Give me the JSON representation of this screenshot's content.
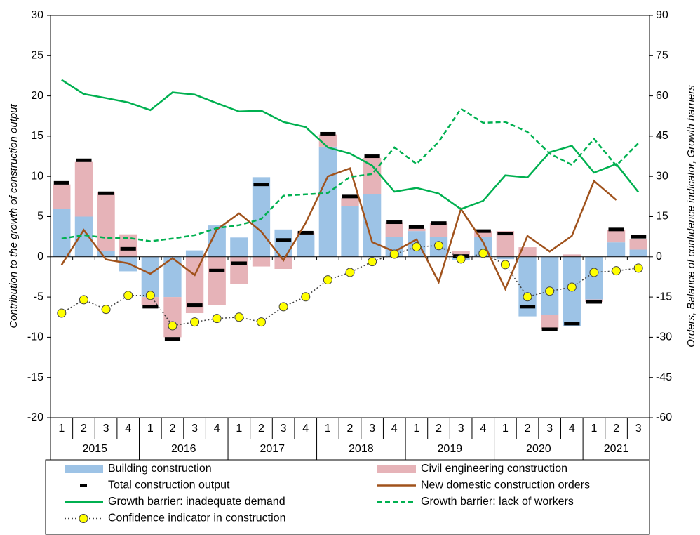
{
  "chart_data": {
    "type": "combo",
    "y_label": "Contribution to the growth of construction output",
    "y2_label": "Orders, Balance of confidence indicator, Growth barriers",
    "category_groups": [
      {
        "group": "2015",
        "categories": [
          "1",
          "2",
          "3",
          "4"
        ]
      },
      {
        "group": "2016",
        "categories": [
          "1",
          "2",
          "3",
          "4"
        ]
      },
      {
        "group": "2017",
        "categories": [
          "1",
          "2",
          "3",
          "4"
        ]
      },
      {
        "group": "2018",
        "categories": [
          "1",
          "2",
          "3",
          "4"
        ]
      },
      {
        "group": "2019",
        "categories": [
          "1",
          "2",
          "3",
          "4"
        ]
      },
      {
        "group": "2020",
        "categories": [
          "1",
          "2",
          "3",
          "4"
        ]
      },
      {
        "group": "2021",
        "categories": [
          "1",
          "2",
          "3"
        ]
      }
    ],
    "ylim": [
      -20,
      30
    ],
    "yticks": [
      -20,
      -15,
      -10,
      -5,
      0,
      5,
      10,
      15,
      20,
      25,
      30
    ],
    "y2lim": [
      -60,
      90
    ],
    "y2ticks": [
      -60,
      -45,
      -30,
      -15,
      0,
      15,
      30,
      45,
      60,
      75,
      90
    ],
    "legend": "bottom",
    "series": [
      {
        "name": "Building construction",
        "type": "bar",
        "color": "#9dc3e6",
        "values": [
          6.0,
          5.0,
          0.7,
          -1.8,
          -5.0,
          -5.0,
          0.8,
          3.9,
          2.4,
          9.9,
          3.4,
          2.7,
          13.7,
          6.3,
          7.8,
          2.5,
          3.2,
          2.5,
          -0.4,
          2.5,
          -0.3,
          -7.4,
          -7.2,
          -8.6,
          -5.3,
          1.8,
          0.9
        ]
      },
      {
        "name": "Civil engineering construction",
        "type": "bar",
        "color": "#e6b3b8",
        "values": [
          3.0,
          6.8,
          7.3,
          2.8,
          -1.0,
          -5.0,
          -7.0,
          -6.0,
          -3.4,
          -1.2,
          -1.5,
          0.3,
          1.5,
          1.0,
          4.5,
          1.8,
          0.3,
          1.7,
          0.7,
          0.7,
          3.2,
          1.2,
          -1.8,
          0.3,
          -0.3,
          1.5,
          1.3
        ]
      },
      {
        "name": "Total construction output",
        "type": "marker",
        "color": "#000000",
        "values": [
          9.2,
          12.0,
          7.9,
          1.0,
          -6.2,
          -10.2,
          -6.0,
          -1.7,
          -0.8,
          9.0,
          2.1,
          3.0,
          15.3,
          7.5,
          12.5,
          4.3,
          3.7,
          4.2,
          0.1,
          3.2,
          2.9,
          -6.2,
          -9.0,
          -8.3,
          -5.6,
          3.4,
          2.5
        ]
      },
      {
        "name": "New domestic construction orders",
        "type": "line",
        "axis": "y2",
        "color": "#a0521c",
        "style": "solid",
        "values": [
          -3,
          10,
          -1,
          -2.4,
          -6.3,
          -0.5,
          -6.8,
          10.2,
          16.2,
          9.4,
          -1.3,
          12.6,
          30,
          33,
          5.5,
          2,
          6.5,
          -9.4,
          17.8,
          5.5,
          -12,
          7.8,
          2,
          7.8,
          28.3,
          21.2,
          null
        ]
      },
      {
        "name": "Growth barrier: inadequate demand",
        "type": "line",
        "axis": "y2",
        "color": "#00b050",
        "style": "solid",
        "values": [
          66,
          60.7,
          59.2,
          57.6,
          54.7,
          61.3,
          60.5,
          57.3,
          54.2,
          54.5,
          50.3,
          48.4,
          40.8,
          38.5,
          34,
          24.3,
          25.7,
          23.6,
          17.8,
          20.9,
          30.4,
          29.6,
          39,
          41.4,
          31.4,
          34.6,
          24.1
        ]
      },
      {
        "name": "Growth barrier: lack of workers",
        "type": "line",
        "axis": "y2",
        "color": "#00b050",
        "style": "dashed",
        "values": [
          6.8,
          8.1,
          7.1,
          7.1,
          5.8,
          6.8,
          8.1,
          10.7,
          11.8,
          14.1,
          22.8,
          23.3,
          23.8,
          29.8,
          30.9,
          40.8,
          34.6,
          42.9,
          55.2,
          50,
          50.3,
          46.6,
          38.5,
          34.3,
          44,
          34,
          42.4
        ]
      },
      {
        "name": "Confidence indicator in construction",
        "type": "line",
        "axis": "y2",
        "color": "#404040",
        "style": "dotted",
        "marker_color": "#ffff00",
        "values": [
          -21,
          -16,
          -19.6,
          -14.4,
          -14.4,
          -25.7,
          -24.3,
          -23,
          -22.5,
          -24.3,
          -18.6,
          -14.9,
          -8.6,
          -5.8,
          -1.8,
          1,
          3.7,
          4.2,
          -0.8,
          1.3,
          -2.9,
          -14.9,
          -12.8,
          -11.3,
          -5.8,
          -5.2,
          -4.2
        ]
      }
    ]
  }
}
